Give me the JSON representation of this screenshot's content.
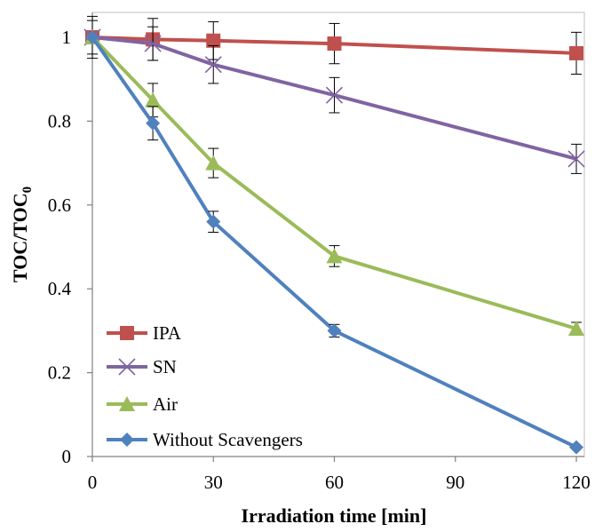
{
  "chart_data": {
    "type": "line",
    "xlabel": "Irradiation time [min]",
    "ylabel_main": "TOC/TOC",
    "ylabel_sub": "0",
    "xlim": [
      0,
      120
    ],
    "ylim": [
      0,
      1.05
    ],
    "xticks": [
      0,
      30,
      60,
      90,
      120
    ],
    "xtick_labels": [
      "0",
      "30",
      "60",
      "90",
      "120"
    ],
    "yticks": [
      0,
      0.2,
      0.4,
      0.6,
      0.8,
      1.0
    ],
    "ytick_labels": [
      "0",
      "0.2",
      "0.4",
      "0.6",
      "0.8",
      "1"
    ],
    "grid": false,
    "legend_position": "bottom-left",
    "series": [
      {
        "name": "IPA",
        "color": "#c0504d",
        "marker": "square",
        "x": [
          0,
          15,
          30,
          60,
          120
        ],
        "y": [
          1.0,
          0.995,
          0.992,
          0.985,
          0.962
        ],
        "error": [
          0.05,
          0.05,
          0.045,
          0.048,
          0.05
        ]
      },
      {
        "name": "SN",
        "color": "#8064a2",
        "marker": "x",
        "x": [
          0,
          15,
          30,
          60,
          120
        ],
        "y": [
          1.0,
          0.985,
          0.935,
          0.862,
          0.71
        ],
        "error": [
          0.04,
          0.04,
          0.045,
          0.042,
          0.035
        ]
      },
      {
        "name": "Air",
        "color": "#9bbb59",
        "marker": "triangle",
        "x": [
          0,
          15,
          30,
          60,
          120
        ],
        "y": [
          1.0,
          0.85,
          0.7,
          0.478,
          0.305
        ],
        "error": [
          0.0,
          0.04,
          0.035,
          0.025,
          0.015
        ]
      },
      {
        "name": "Without Scavengers",
        "color": "#4f81bd",
        "marker": "diamond",
        "x": [
          0,
          15,
          30,
          60,
          120
        ],
        "y": [
          1.0,
          0.795,
          0.56,
          0.3,
          0.022
        ],
        "error": [
          0.0,
          0.04,
          0.025,
          0.015,
          0.0
        ]
      }
    ]
  }
}
